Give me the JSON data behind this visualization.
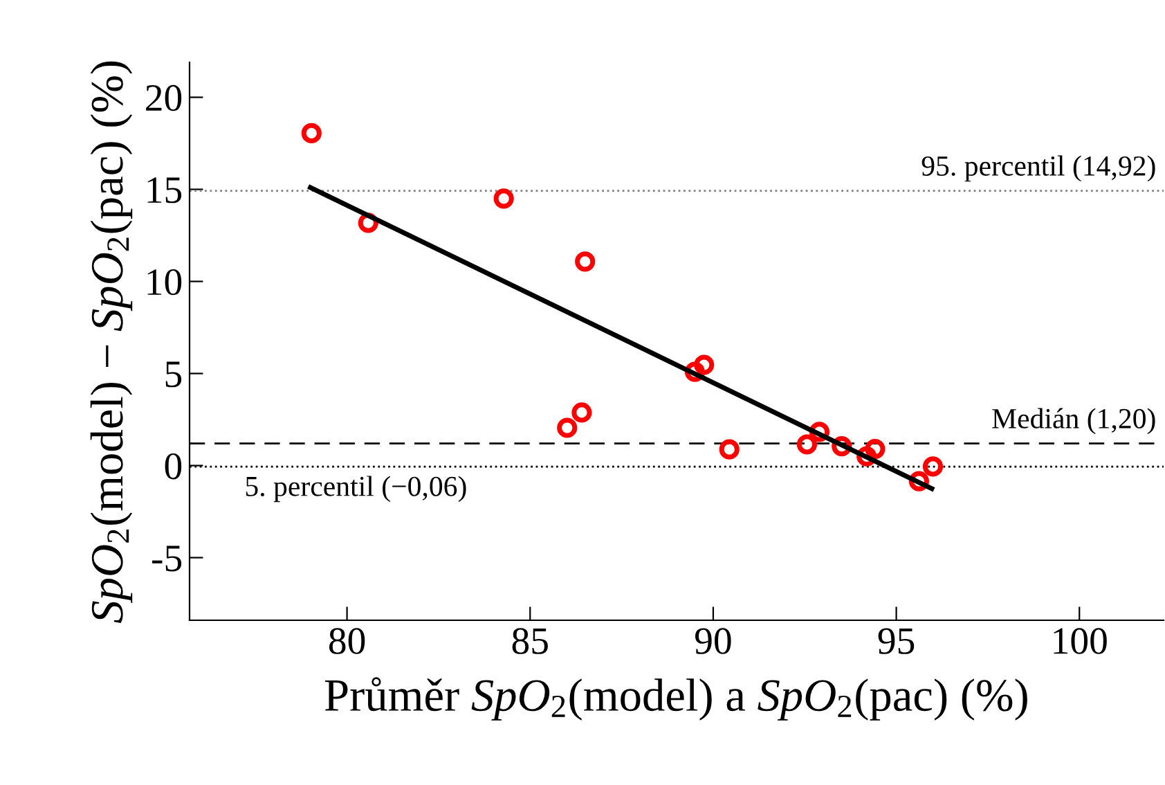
{
  "chart_data": {
    "type": "scatter",
    "xlabel": "Průměr SpO$_{2}$(model) a SpO$_{2}$(pac) (%)",
    "ylabel": "SpO$_{2}$(model) − SpO$_{2}$(pac) (%)",
    "series": [
      {
        "color": "#ff0000",
        "marker": "circle",
        "x": [
          79.03,
          80.58,
          84.28,
          86.5,
          86.01,
          86.41,
          89.5,
          89.75,
          90.44,
          92.56,
          92.9,
          93.51,
          94.19,
          94.42,
          95.62,
          96.0
        ],
        "values": [
          18.05,
          13.18,
          14.5,
          11.08,
          2.05,
          2.88,
          5.09,
          5.47,
          0.88,
          1.15,
          1.83,
          1.05,
          0.5,
          0.9,
          -0.85,
          -0.05
        ]
      },
      {
        "type": "line",
        "color": "#000000",
        "marker": "none",
        "line_style": "solid",
        "x": [
          79.0,
          95.97
        ],
        "values": [
          15.1,
          -1.25
        ]
      }
    ],
    "ref_lines": [
      {
        "axis": "y",
        "value": 14.92,
        "label": "95. percentil (14,92)",
        "color": "#808080",
        "line_style": "dotted"
      },
      {
        "axis": "y",
        "value": 1.2,
        "label": "Medián (1,20)",
        "color": "#000000",
        "line_style": "dashed"
      },
      {
        "axis": "y",
        "value": -0.06,
        "label": "5. percentil (−0,06)",
        "color": "#000000",
        "line_style": "dotted"
      }
    ],
    "xlim": [
      75.7,
      102.3
    ],
    "xticks": [
      80,
      85,
      90,
      95,
      100
    ],
    "ylim": [
      -8.4,
      21.9
    ],
    "yticks": [
      {
        "value": -5,
        "label": "-5"
      },
      0,
      5,
      10,
      15,
      20
    ],
    "grid": false,
    "legend": false
  }
}
